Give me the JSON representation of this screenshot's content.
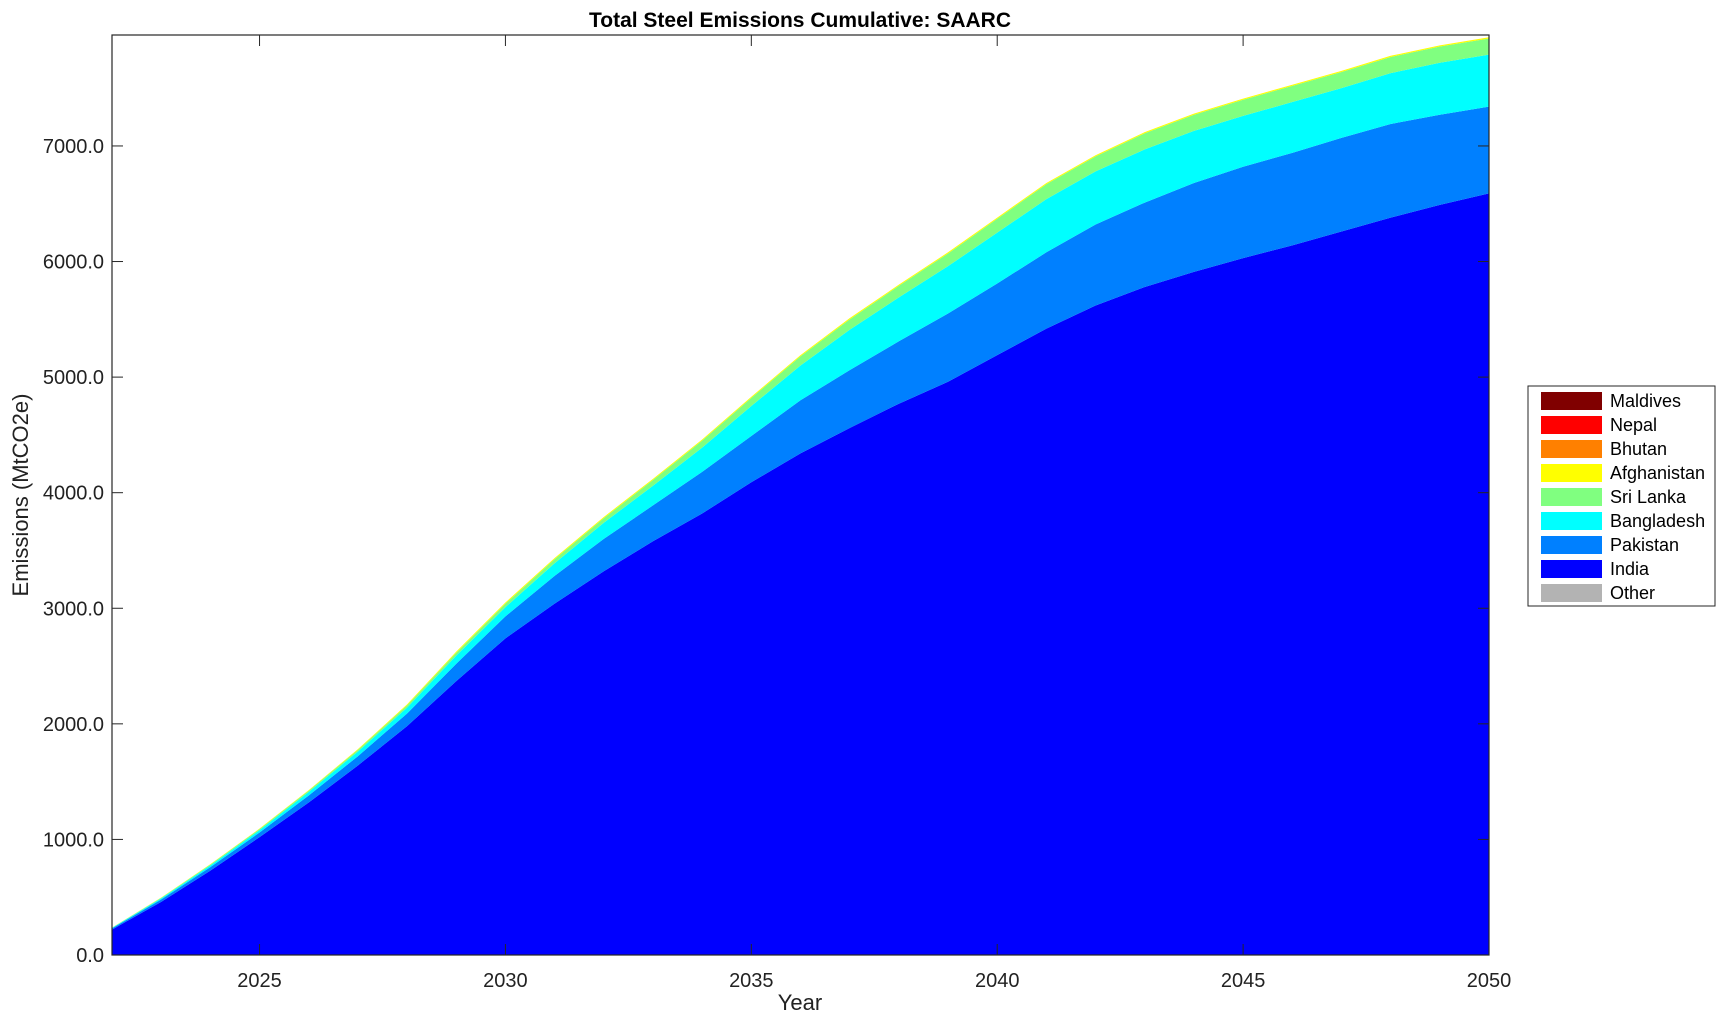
{
  "chart_data": {
    "type": "area",
    "stacked": true,
    "title": "Total Steel Emissions Cumulative: SAARC",
    "xlabel": "Year",
    "ylabel": "Emissions (MtCO2e)",
    "xlim": [
      2022,
      2050
    ],
    "ylim": [
      0,
      7960
    ],
    "xticks": [
      2025,
      2030,
      2035,
      2040,
      2045,
      2050
    ],
    "xtick_labels": [
      "2025",
      "2030",
      "2035",
      "2040",
      "2045",
      "2050"
    ],
    "yticks": [
      0,
      1000,
      2000,
      3000,
      4000,
      5000,
      6000,
      7000
    ],
    "ytick_labels": [
      "0.0",
      "1000.0",
      "2000.0",
      "3000.0",
      "4000.0",
      "5000.0",
      "6000.0",
      "7000.0"
    ],
    "grid": false,
    "legend_position": "outside-right",
    "x": [
      2022,
      2023,
      2024,
      2025,
      2026,
      2027,
      2028,
      2029,
      2030,
      2031,
      2032,
      2033,
      2034,
      2035,
      2036,
      2037,
      2038,
      2039,
      2040,
      2041,
      2042,
      2043,
      2044,
      2045,
      2046,
      2047,
      2048,
      2049,
      2050
    ],
    "series": [
      {
        "name": "Other",
        "color": "#b3b3b3",
        "values": [
          0,
          0,
          0,
          0,
          0,
          0,
          0,
          0,
          0,
          0,
          0,
          0,
          0,
          0,
          0,
          0,
          0,
          0,
          0,
          0,
          0,
          0,
          0,
          0,
          0,
          0,
          0,
          0,
          0
        ]
      },
      {
        "name": "India",
        "color": "#0000ff",
        "values": [
          220,
          460,
          730,
          1020,
          1320,
          1640,
          1980,
          2370,
          2740,
          3040,
          3320,
          3580,
          3820,
          4090,
          4340,
          4560,
          4770,
          4960,
          5190,
          5420,
          5620,
          5780,
          5910,
          6030,
          6140,
          6260,
          6380,
          6490,
          6590
        ]
      },
      {
        "name": "Pakistan",
        "color": "#0080ff",
        "values": [
          10,
          20,
          30,
          40,
          60,
          80,
          110,
          150,
          190,
          240,
          280,
          310,
          360,
          400,
          460,
          500,
          540,
          590,
          620,
          660,
          700,
          730,
          770,
          790,
          800,
          810,
          810,
          780,
          750
        ]
      },
      {
        "name": "Bangladesh",
        "color": "#00ffff",
        "values": [
          5,
          10,
          15,
          20,
          30,
          40,
          50,
          70,
          80,
          110,
          140,
          170,
          210,
          260,
          300,
          350,
          380,
          410,
          440,
          460,
          460,
          460,
          450,
          440,
          440,
          430,
          440,
          450,
          450
        ]
      },
      {
        "name": "Sri Lanka",
        "color": "#80ff80",
        "values": [
          2,
          5,
          8,
          10,
          12,
          15,
          20,
          25,
          30,
          35,
          40,
          50,
          60,
          70,
          80,
          90,
          100,
          110,
          120,
          130,
          130,
          140,
          140,
          140,
          140,
          140,
          140,
          140,
          140
        ]
      },
      {
        "name": "Afghanistan",
        "color": "#ffff00",
        "values": [
          1,
          2,
          3,
          4,
          5,
          6,
          8,
          10,
          10,
          10,
          10,
          10,
          10,
          10,
          10,
          10,
          10,
          10,
          10,
          10,
          10,
          10,
          10,
          10,
          10,
          10,
          10,
          10,
          10
        ]
      },
      {
        "name": "Bhutan",
        "color": "#ff8000",
        "values": [
          0,
          0,
          0,
          0,
          0,
          0,
          0,
          0,
          0,
          0,
          0,
          0,
          0,
          0,
          0,
          0,
          0,
          0,
          0,
          0,
          0,
          0,
          0,
          0,
          0,
          0,
          0,
          0,
          0
        ]
      },
      {
        "name": "Nepal",
        "color": "#ff0000",
        "values": [
          0,
          0,
          0,
          0,
          0,
          0,
          0,
          0,
          0,
          0,
          0,
          0,
          0,
          0,
          0,
          0,
          0,
          0,
          0,
          0,
          0,
          0,
          0,
          0,
          0,
          0,
          0,
          0,
          0
        ]
      },
      {
        "name": "Maldives",
        "color": "#800000",
        "values": [
          0,
          0,
          0,
          0,
          0,
          0,
          0,
          0,
          0,
          0,
          0,
          0,
          0,
          0,
          0,
          0,
          0,
          0,
          0,
          0,
          0,
          0,
          0,
          0,
          0,
          0,
          0,
          0,
          0
        ]
      }
    ],
    "legend_order": [
      "Maldives",
      "Nepal",
      "Bhutan",
      "Afghanistan",
      "Sri Lanka",
      "Bangladesh",
      "Pakistan",
      "India",
      "Other"
    ]
  }
}
